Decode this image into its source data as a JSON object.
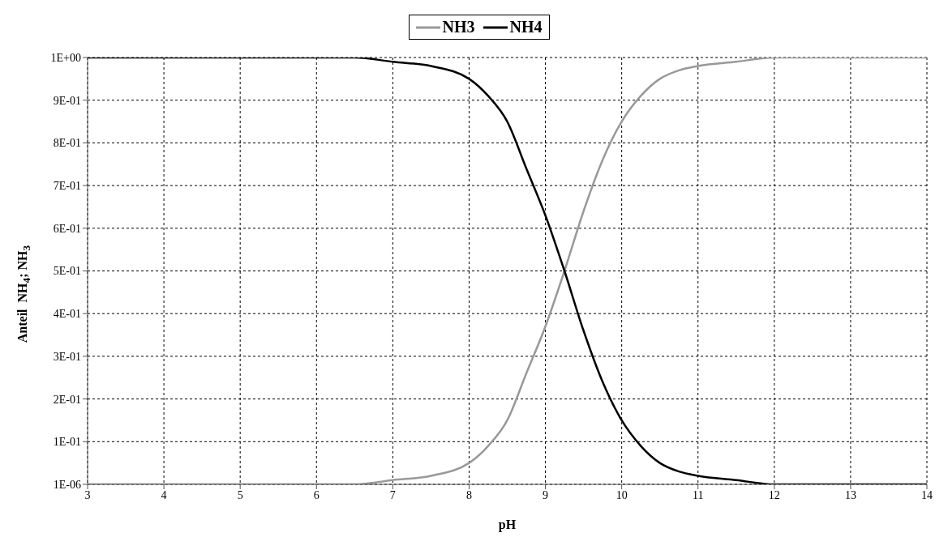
{
  "chart_data": {
    "type": "line",
    "xlabel": "pH",
    "ylabel": "Anteil  NH$_{4}$; NH$_{3}$",
    "x": [
      3,
      4,
      5,
      6,
      6.5,
      7,
      7.5,
      8,
      8.25,
      8.5,
      8.75,
      9,
      9.25,
      9.5,
      9.75,
      10,
      10.25,
      10.5,
      10.75,
      11,
      11.5,
      12,
      13,
      14
    ],
    "series": [
      {
        "name": "NH3",
        "color": "#999999",
        "values": [
          0,
          0,
          0,
          0,
          0,
          0.01,
          0.02,
          0.05,
          0.09,
          0.15,
          0.26,
          0.37,
          0.5,
          0.64,
          0.76,
          0.85,
          0.91,
          0.95,
          0.97,
          0.98,
          0.99,
          1,
          1,
          1
        ]
      },
      {
        "name": "NH4",
        "color": "#000000",
        "values": [
          1,
          1,
          1,
          1,
          1,
          0.99,
          0.98,
          0.95,
          0.91,
          0.85,
          0.74,
          0.63,
          0.5,
          0.36,
          0.24,
          0.15,
          0.09,
          0.05,
          0.03,
          0.02,
          0.01,
          0,
          0,
          0
        ]
      }
    ],
    "xlim": [
      3,
      14
    ],
    "xticks": [
      3,
      4,
      5,
      6,
      7,
      8,
      9,
      10,
      11,
      12,
      13,
      14
    ],
    "ylim": [
      0,
      1
    ],
    "yticks": [
      {
        "value": 1e-06,
        "label": "1E-06"
      },
      {
        "value": 0.1,
        "label": "1E-01"
      },
      {
        "value": 0.2,
        "label": "2E-01"
      },
      {
        "value": 0.3,
        "label": "3E-01"
      },
      {
        "value": 0.4,
        "label": "4E-01"
      },
      {
        "value": 0.5,
        "label": "5E-01"
      },
      {
        "value": 0.6,
        "label": "6E-01"
      },
      {
        "value": 0.7,
        "label": "7E-01"
      },
      {
        "value": 0.8,
        "label": "8E-01"
      },
      {
        "value": 0.9,
        "label": "9E-01"
      },
      {
        "value": 1,
        "label": "1E+00"
      }
    ],
    "grid": true,
    "legend": "top",
    "marker": "none",
    "line_style": "solid"
  }
}
